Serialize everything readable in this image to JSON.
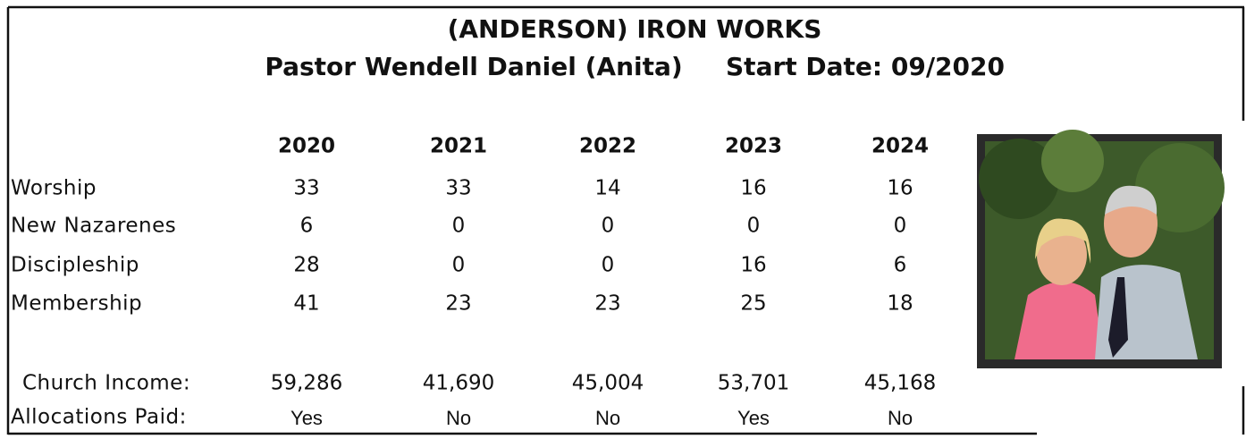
{
  "header": {
    "title": "(ANDERSON) IRON WORKS",
    "pastor": "Pastor Wendell Daniel (Anita)",
    "start_date": "Start Date: 09/2020"
  },
  "table": {
    "columns": [
      "2020",
      "2021",
      "2022",
      "2023",
      "2024"
    ],
    "rows": [
      {
        "label": "Worship",
        "values": [
          33,
          33,
          14,
          16,
          16
        ]
      },
      {
        "label": "New Nazarenes",
        "values": [
          6,
          0,
          0,
          0,
          0
        ]
      },
      {
        "label": "Discipleship",
        "values": [
          28,
          0,
          0,
          16,
          6
        ]
      },
      {
        "label": "Membership",
        "values": [
          41,
          23,
          23,
          25,
          18
        ]
      }
    ],
    "income": {
      "label": "Church Income:",
      "values": [
        "59,286",
        "41,690",
        "45,004",
        "53,701",
        "45,168"
      ]
    },
    "allocations": {
      "label": "Allocations Paid:",
      "values": [
        "Yes",
        "No",
        "No",
        "Yes",
        "No"
      ]
    }
  }
}
